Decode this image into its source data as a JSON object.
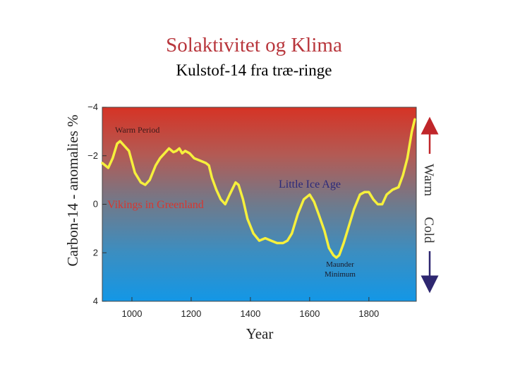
{
  "title": "Solaktivitet og Klima",
  "subtitle": "Kulstof-14 fra træ-ringe",
  "chart_data": {
    "type": "line",
    "xlabel": "Year",
    "ylabel": "Carbon-14 - anomalies %",
    "xlim": [
      900,
      1960
    ],
    "ylim": [
      -4,
      4
    ],
    "y_inverted": true,
    "x_ticks": [
      1000,
      1200,
      1400,
      1600,
      1800
    ],
    "y_ticks": [
      -4,
      -2,
      0,
      2,
      4
    ],
    "y_tick_labels": [
      "−4",
      "−2",
      "0",
      "2",
      "4"
    ],
    "background": "vertical gradient, red (top) to blue (bottom)",
    "series": [
      {
        "name": "Carbon-14 anomaly",
        "color": "#f6f03c",
        "x": [
          900,
          920,
          935,
          950,
          960,
          975,
          990,
          1010,
          1030,
          1045,
          1060,
          1080,
          1095,
          1110,
          1125,
          1140,
          1150,
          1160,
          1170,
          1180,
          1195,
          1210,
          1230,
          1250,
          1260,
          1270,
          1285,
          1300,
          1315,
          1330,
          1350,
          1360,
          1375,
          1390,
          1410,
          1430,
          1450,
          1470,
          1490,
          1500,
          1510,
          1525,
          1540,
          1560,
          1580,
          1600,
          1615,
          1630,
          1650,
          1665,
          1680,
          1690,
          1700,
          1715,
          1730,
          1750,
          1770,
          1785,
          1800,
          1815,
          1830,
          1845,
          1860,
          1880,
          1900,
          1915,
          1930,
          1945,
          1955
        ],
        "values": [
          -1.7,
          -1.5,
          -1.9,
          -2.5,
          -2.6,
          -2.4,
          -2.2,
          -1.3,
          -0.9,
          -0.8,
          -1.0,
          -1.6,
          -1.9,
          -2.1,
          -2.3,
          -2.15,
          -2.2,
          -2.3,
          -2.1,
          -2.2,
          -2.1,
          -1.9,
          -1.8,
          -1.7,
          -1.6,
          -1.1,
          -0.6,
          -0.2,
          0.0,
          -0.4,
          -0.9,
          -0.8,
          -0.2,
          0.6,
          1.2,
          1.5,
          1.4,
          1.5,
          1.6,
          1.6,
          1.6,
          1.5,
          1.2,
          0.4,
          -0.2,
          -0.4,
          -0.1,
          0.4,
          1.1,
          1.8,
          2.1,
          2.2,
          2.1,
          1.6,
          1.0,
          0.2,
          -0.4,
          -0.5,
          -0.5,
          -0.2,
          0.0,
          0.0,
          -0.4,
          -0.6,
          -0.7,
          -1.2,
          -1.9,
          -3.0,
          -3.5
        ]
      }
    ],
    "annotations": {
      "warm_period": "Warm Period",
      "vikings": "Vikings in Greenland",
      "little_ice_age": "Little Ice Age",
      "maunder_line1": "Maunder",
      "maunder_line2": "Minimum",
      "warm": "Warm",
      "cold": "Cold"
    },
    "annotation_colors": {
      "vikings": "#d9362e",
      "little_ice_age": "#2b2a7a",
      "warm_arrow": "#c0262a",
      "cold_arrow": "#2e2770"
    }
  }
}
